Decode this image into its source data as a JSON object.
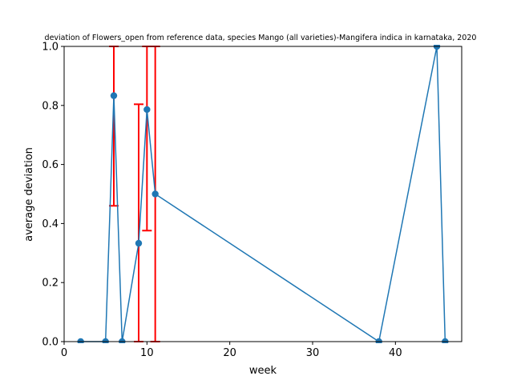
{
  "chart_data": {
    "type": "line",
    "title": "deviation of Flowers_open from reference data, species Mango (all varieties)-Mangifera indica in karnataka, 2020",
    "xlabel": "week",
    "ylabel": "average deviation",
    "xlim": [
      0,
      48
    ],
    "ylim": [
      0.0,
      1.0
    ],
    "x_ticks": [
      0,
      10,
      20,
      30,
      40
    ],
    "y_ticks": [
      0.0,
      0.2,
      0.4,
      0.6,
      0.8,
      1.0
    ],
    "x_tick_labels": [
      "0",
      "10",
      "20",
      "30",
      "40"
    ],
    "y_tick_labels": [
      "0.0",
      "0.2",
      "0.4",
      "0.6",
      "0.8",
      "1.0"
    ],
    "grid": false,
    "series": [
      {
        "color": "#1f77b4",
        "x": [
          2,
          5,
          6,
          7,
          9,
          10,
          11,
          38,
          45,
          46
        ],
        "y": [
          0.0,
          0.0,
          0.833,
          0.0,
          0.333,
          0.786,
          0.5,
          0.0,
          1.0,
          0.0
        ]
      }
    ],
    "error_bars": {
      "color": "#ff0000",
      "points": [
        {
          "x": 2,
          "y": 0.0,
          "err": 0.0
        },
        {
          "x": 5,
          "y": 0.0,
          "err": 0.0
        },
        {
          "x": 6,
          "y": 0.833,
          "err": 0.373
        },
        {
          "x": 7,
          "y": 0.0,
          "err": 0.0
        },
        {
          "x": 9,
          "y": 0.333,
          "err": 0.471
        },
        {
          "x": 10,
          "y": 0.786,
          "err": 0.41
        },
        {
          "x": 11,
          "y": 0.5,
          "err": 0.5
        },
        {
          "x": 38,
          "y": 0.0,
          "err": 0.0
        },
        {
          "x": 45,
          "y": 1.0,
          "err": 0.0
        },
        {
          "x": 46,
          "y": 0.0,
          "err": 0.0
        }
      ]
    }
  }
}
